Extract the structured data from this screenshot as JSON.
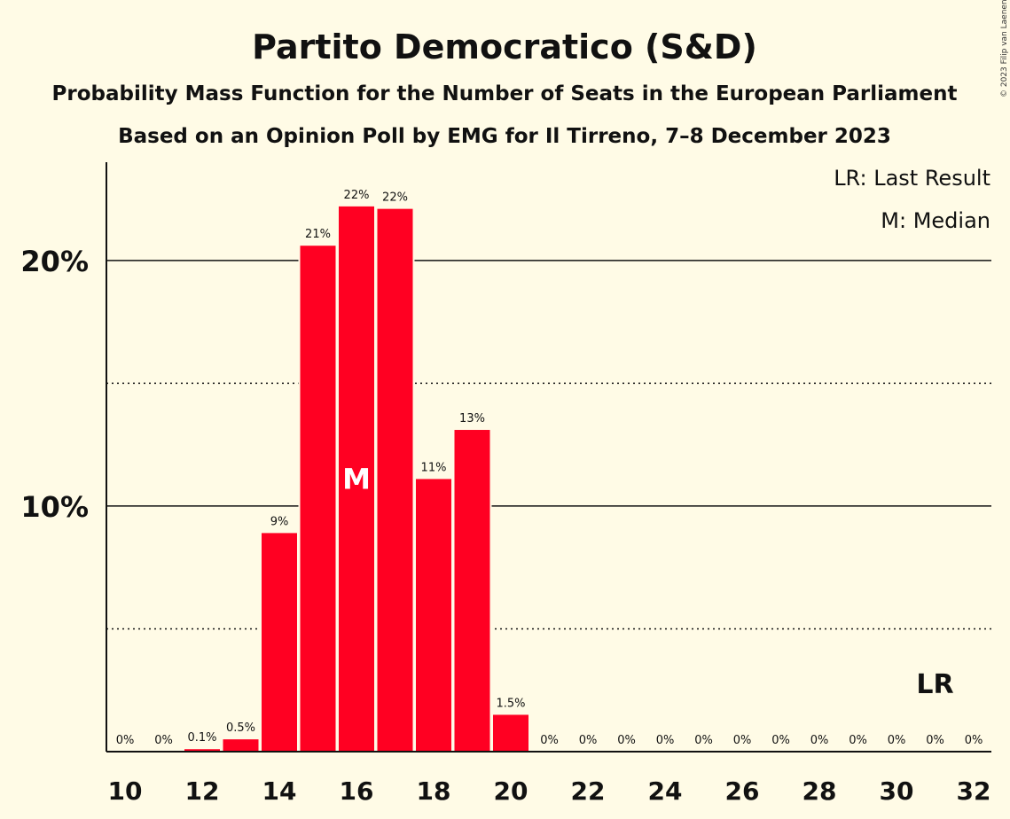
{
  "title": "Partito Democratico (S&D)",
  "subtitle1": "Probability Mass Function for the Number of Seats in the European Parliament",
  "subtitle2": "Based on an Opinion Poll by EMG for Il Tirreno, 7–8 December 2023",
  "copyright": "© 2023 Filip van Laenen",
  "legend": {
    "last_result": "LR: Last Result",
    "median": "M: Median"
  },
  "colors": {
    "bar": "#ff0022",
    "background": "#fffbe6",
    "text": "#111111"
  },
  "chart_data": {
    "type": "bar",
    "title": "Partito Democratico (S&D)",
    "x": [
      10,
      11,
      12,
      13,
      14,
      15,
      16,
      17,
      18,
      19,
      20,
      21,
      22,
      23,
      24,
      25,
      26,
      27,
      28,
      29,
      30,
      31,
      32
    ],
    "values": [
      0,
      0,
      0.1,
      0.5,
      8.9,
      20.6,
      22.2,
      22.1,
      11.1,
      13.1,
      1.5,
      0,
      0,
      0,
      0,
      0,
      0,
      0,
      0,
      0,
      0,
      0,
      0
    ],
    "labels": [
      "0%",
      "0%",
      "0.1%",
      "0.5%",
      "9%",
      "21%",
      "22%",
      "22%",
      "11%",
      "13%",
      "1.5%",
      "0%",
      "0%",
      "0%",
      "0%",
      "0%",
      "0%",
      "0%",
      "0%",
      "0%",
      "0%",
      "0%",
      "0%"
    ],
    "x_ticks": [
      10,
      12,
      14,
      16,
      18,
      20,
      22,
      24,
      26,
      28,
      30,
      32
    ],
    "y_ticks": [
      {
        "value": 10,
        "label": "10%"
      },
      {
        "value": 20,
        "label": "20%"
      }
    ],
    "y_minor_gridlines": [
      5,
      15
    ],
    "ylim": [
      0,
      24
    ],
    "median": {
      "x": 16,
      "label": "M"
    },
    "last_result": {
      "x": 31,
      "label": "LR"
    },
    "legend_position": "top-right"
  }
}
